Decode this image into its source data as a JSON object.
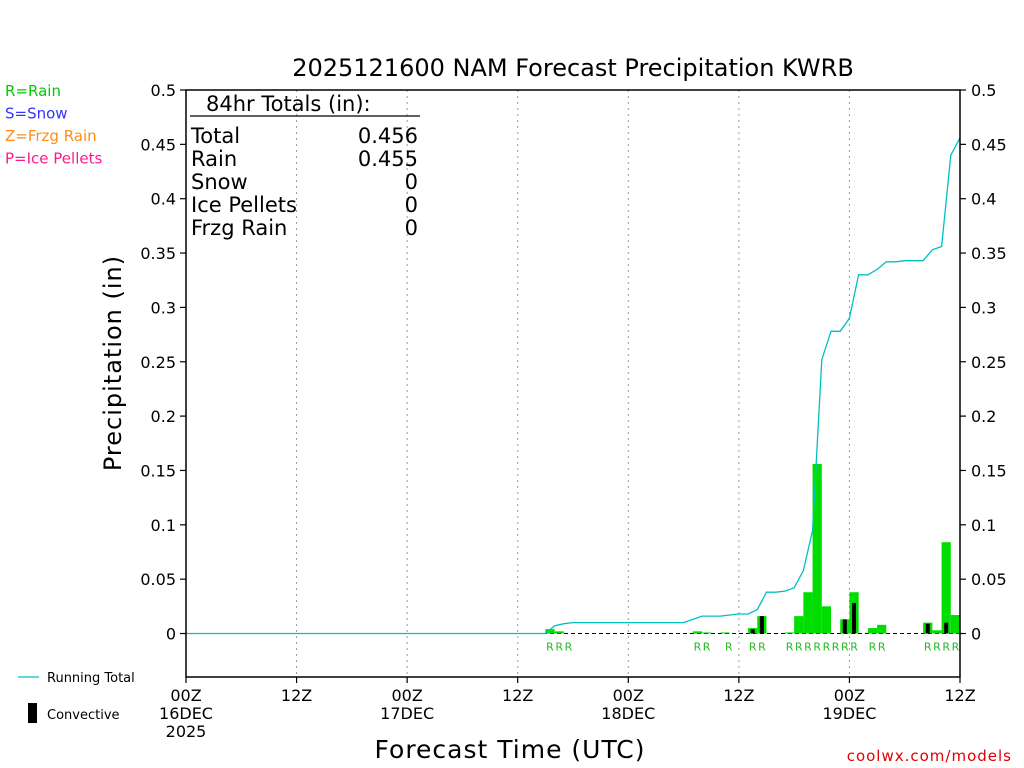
{
  "chart_data": {
    "type": "bar",
    "title": "2025121600 NAM Forecast Precipitation KWRB",
    "xlabel": "Forecast Time (UTC)",
    "ylabel": "Precipitation (in)",
    "ylim": [
      -0.04,
      0.5
    ],
    "xlim_hours": [
      0,
      84
    ],
    "y_ticks": [
      0,
      0.05,
      0.1,
      0.15,
      0.2,
      0.25,
      0.3,
      0.35,
      0.4,
      0.45,
      0.5
    ],
    "y_tick_labels": [
      "0",
      "0.05",
      "0.1",
      "0.15",
      "0.2",
      "0.25",
      "0.3",
      "0.35",
      "0.4",
      "0.45",
      "0.5"
    ],
    "x_ticks": [
      {
        "hour": 0,
        "lines": [
          "00Z",
          "16DEC",
          "2025"
        ]
      },
      {
        "hour": 12,
        "lines": [
          "12Z"
        ]
      },
      {
        "hour": 24,
        "lines": [
          "00Z",
          "17DEC"
        ]
      },
      {
        "hour": 36,
        "lines": [
          "12Z"
        ]
      },
      {
        "hour": 48,
        "lines": [
          "00Z",
          "18DEC"
        ]
      },
      {
        "hour": 60,
        "lines": [
          "12Z"
        ]
      },
      {
        "hour": 72,
        "lines": [
          "00Z",
          "19DEC"
        ]
      },
      {
        "hour": 84,
        "lines": [
          "12Z"
        ]
      }
    ],
    "grid_vertical_hours": [
      12,
      24,
      36,
      48,
      60,
      72
    ],
    "rain_bars": [
      {
        "hour": 40,
        "value": 0.004
      },
      {
        "hour": 41,
        "value": 0.002
      },
      {
        "hour": 56,
        "value": 0.002
      },
      {
        "hour": 57,
        "value": 0.001
      },
      {
        "hour": 59,
        "value": 0.001
      },
      {
        "hour": 62,
        "value": 0.005
      },
      {
        "hour": 63,
        "value": 0.016
      },
      {
        "hour": 66,
        "value": 0.001
      },
      {
        "hour": 67,
        "value": 0.016
      },
      {
        "hour": 68,
        "value": 0.038
      },
      {
        "hour": 69,
        "value": 0.156
      },
      {
        "hour": 70,
        "value": 0.025
      },
      {
        "hour": 72,
        "value": 0.013
      },
      {
        "hour": 73,
        "value": 0.038
      },
      {
        "hour": 75,
        "value": 0.005
      },
      {
        "hour": 76,
        "value": 0.008
      },
      {
        "hour": 81,
        "value": 0.01
      },
      {
        "hour": 82,
        "value": 0.003
      },
      {
        "hour": 83,
        "value": 0.084
      },
      {
        "hour": 84,
        "value": 0.017
      }
    ],
    "convective_bars": [
      {
        "hour": 62,
        "value": 0.004
      },
      {
        "hour": 63,
        "value": 0.016
      },
      {
        "hour": 72,
        "value": 0.013
      },
      {
        "hour": 73,
        "value": 0.028
      },
      {
        "hour": 81,
        "value": 0.009
      },
      {
        "hour": 83,
        "value": 0.01
      }
    ],
    "running_total": {
      "name": "Running Total",
      "hours": [
        0,
        39,
        40,
        41,
        42,
        54,
        55,
        56,
        57,
        58,
        59,
        60,
        61,
        62,
        63,
        64,
        65,
        66,
        67,
        68,
        69,
        70,
        71,
        72,
        73,
        74,
        75,
        76,
        77,
        78,
        79,
        80,
        81,
        82,
        83,
        84
      ],
      "values": [
        0,
        0,
        0.007,
        0.009,
        0.01,
        0.01,
        0.013,
        0.016,
        0.016,
        0.016,
        0.017,
        0.018,
        0.018,
        0.022,
        0.038,
        0.038,
        0.039,
        0.042,
        0.058,
        0.095,
        0.252,
        0.278,
        0.278,
        0.29,
        0.33,
        0.33,
        0.335,
        0.342,
        0.342,
        0.343,
        0.343,
        0.343,
        0.353,
        0.356,
        0.44,
        0.456
      ]
    },
    "ptype_codes": [
      {
        "hour": 39.5,
        "text": "R"
      },
      {
        "hour": 40.5,
        "text": "R"
      },
      {
        "hour": 41.5,
        "text": "R"
      },
      {
        "hour": 55.5,
        "text": "R"
      },
      {
        "hour": 56.5,
        "text": "R"
      },
      {
        "hour": 58.9,
        "text": "R"
      },
      {
        "hour": 61.5,
        "text": "R"
      },
      {
        "hour": 62.5,
        "text": "R"
      },
      {
        "hour": 65.5,
        "text": "R"
      },
      {
        "hour": 66.5,
        "text": "R"
      },
      {
        "hour": 67.5,
        "text": "R"
      },
      {
        "hour": 68.5,
        "text": "R"
      },
      {
        "hour": 69.5,
        "text": "R"
      },
      {
        "hour": 70.5,
        "text": "R"
      },
      {
        "hour": 71.5,
        "text": "R"
      },
      {
        "hour": 72.5,
        "text": "R"
      },
      {
        "hour": 74.5,
        "text": "R"
      },
      {
        "hour": 75.5,
        "text": "R"
      },
      {
        "hour": 80.5,
        "text": "R"
      },
      {
        "hour": 81.5,
        "text": "R"
      },
      {
        "hour": 82.5,
        "text": "R"
      },
      {
        "hour": 83.5,
        "text": "R"
      }
    ],
    "totals_box": {
      "heading": "84hr Totals (in):",
      "rows": [
        {
          "label": "Total",
          "value": "0.456"
        },
        {
          "label": "Rain",
          "value": "0.455"
        },
        {
          "label": "Snow",
          "value": "0"
        },
        {
          "label": "Ice Pellets",
          "value": "0"
        },
        {
          "label": "Frzg Rain",
          "value": "0"
        }
      ]
    },
    "ptype_legend": [
      {
        "text": "R=Rain",
        "color": "#00cc00"
      },
      {
        "text": "S=Snow",
        "color": "#3333ff"
      },
      {
        "text": "Z=Frzg Rain",
        "color": "#ff8c1a"
      },
      {
        "text": "P=Ice Pellets",
        "color": "#ff1a8c"
      }
    ],
    "series_legend": [
      {
        "name": "Running Total",
        "color": "#00c0c0"
      },
      {
        "name": "Convective",
        "color": "#000000"
      }
    ],
    "credit": "coolwx.com/models"
  },
  "colors": {
    "rain": "#00dd00",
    "convective": "#000000",
    "running_total": "#00c0c0",
    "code_text": "#22bb22",
    "credit": "#dd0000",
    "grid": "#999999"
  }
}
